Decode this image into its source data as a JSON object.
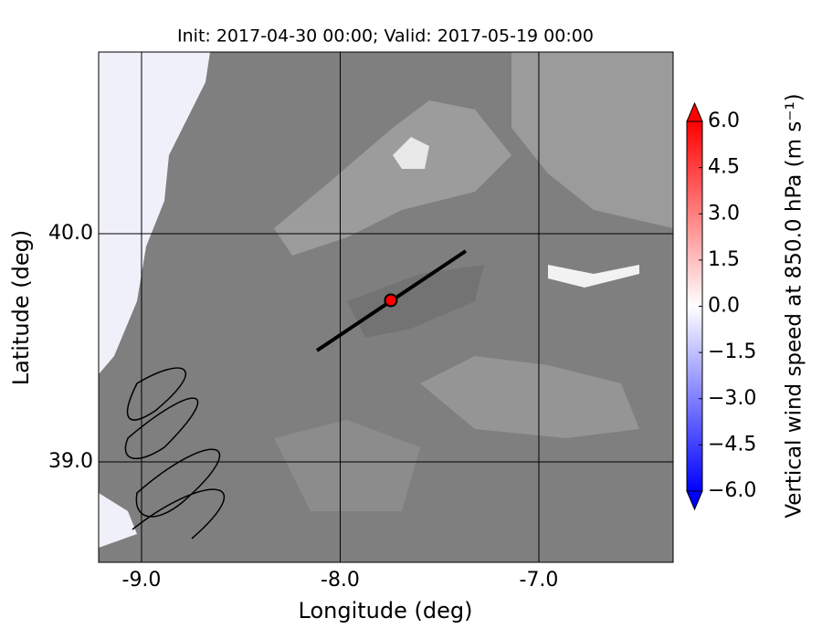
{
  "chart_data": {
    "type": "map",
    "title": "Init: 2017-04-30 00:00; Valid: 2017-05-19 00:00",
    "x_label": "Longitude (deg)",
    "y_label": "Latitude (deg)",
    "xlim": [
      -9.216,
      -6.324
    ],
    "ylim": [
      38.56,
      40.796
    ],
    "xticks": [
      {
        "value": -9,
        "label": "-9.0"
      },
      {
        "value": -8,
        "label": "-8.0"
      },
      {
        "value": -7,
        "label": "-7.0"
      }
    ],
    "yticks": [
      {
        "value": 39,
        "label": "39.0"
      },
      {
        "value": 40,
        "label": "40.0"
      }
    ],
    "grid": true,
    "cross_section": {
      "x": [
        -8.117,
        -7.368
      ],
      "y": [
        39.488,
        39.924
      ],
      "color": "#000000"
    },
    "point": {
      "x": -7.745,
      "y": 39.708,
      "color": "#ff0000"
    },
    "colorbar": {
      "label": "Vertical wind speed at 850.0 hPa (m s⁻¹)",
      "clim": [
        -6,
        6
      ],
      "colors": [
        "#0000ff",
        "#ffffff",
        "#ff0000"
      ],
      "ticks": [
        {
          "value": -6,
          "label": "−6.0"
        },
        {
          "value": -4.5,
          "label": "−4.5"
        },
        {
          "value": -3,
          "label": "−3.0"
        },
        {
          "value": -1.5,
          "label": "−1.5"
        },
        {
          "value": 0,
          "label": "0.0"
        },
        {
          "value": 1.5,
          "label": "1.5"
        },
        {
          "value": 3,
          "label": "3.0"
        },
        {
          "value": 4.5,
          "label": "4.5"
        },
        {
          "value": 6,
          "label": "6.0"
        }
      ]
    }
  }
}
